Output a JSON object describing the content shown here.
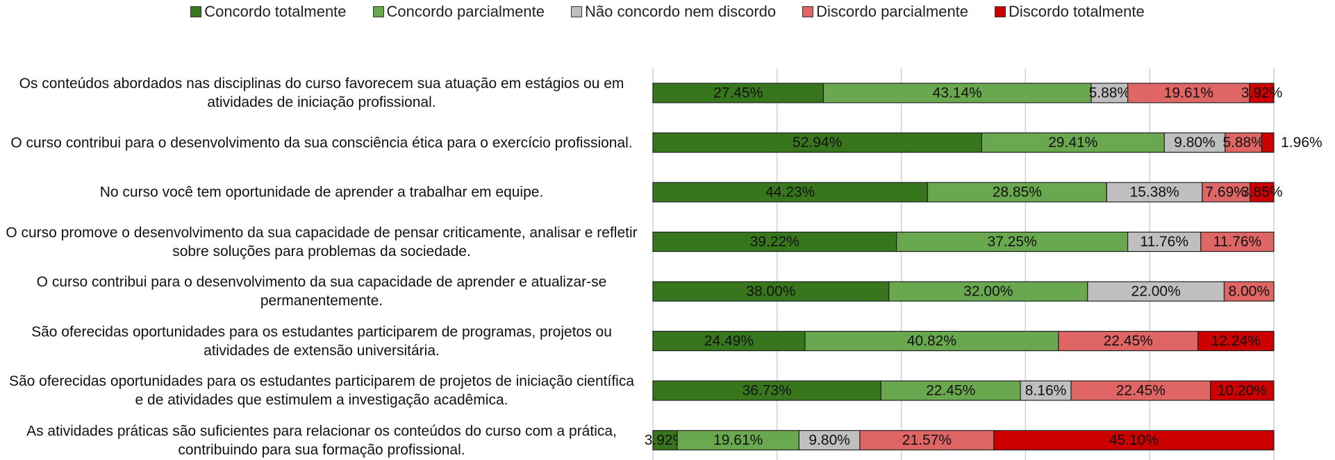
{
  "chart_data": {
    "type": "stacked-barh",
    "categories": [
      "Os conteúdos abordados nas disciplinas do curso favorecem sua atuação em estágios ou em atividades de iniciação profissional.",
      "O curso contribui para o desenvolvimento da sua consciência ética para o exercício profissional.",
      "No curso você tem oportunidade de aprender a trabalhar em equipe.",
      "O curso promove o desenvolvimento da sua capacidade de pensar criticamente, analisar e refletir sobre soluções para problemas da sociedade.",
      "O curso contribui para o desenvolvimento da sua capacidade de aprender e atualizar-se permanentemente.",
      "São oferecidas oportunidades para os estudantes participarem de programas, projetos ou atividades de extensão universitária.",
      "São oferecidas oportunidades para os estudantes participarem de projetos de iniciação científica e de atividades que estimulem a investigação acadêmica.",
      "As atividades práticas são suficientes para relacionar os conteúdos do curso com a prática, contribuindo para sua formação profissional."
    ],
    "series": [
      {
        "name": "Concordo totalmente",
        "color": "#38761d",
        "values": [
          27.45,
          52.94,
          44.23,
          39.22,
          38.0,
          24.49,
          36.73,
          3.92
        ],
        "value_labels": [
          "27.45%",
          "52.94%",
          "44.23%",
          "39.22%",
          "38.00%",
          "24.49%",
          "36.73%",
          "3.92%"
        ]
      },
      {
        "name": "Concordo parcialmente",
        "color": "#6aa84f",
        "values": [
          43.14,
          29.41,
          28.85,
          37.25,
          32.0,
          40.82,
          22.45,
          19.61
        ],
        "value_labels": [
          "43.14%",
          "29.41%",
          "28.85%",
          "37.25%",
          "32.00%",
          "40.82%",
          "22.45%",
          "19.61%"
        ]
      },
      {
        "name": "Não concordo nem discordo",
        "color": "#bfbfbf",
        "values": [
          5.88,
          9.8,
          15.38,
          11.76,
          22.0,
          null,
          8.16,
          9.8
        ],
        "value_labels": [
          "5.88%",
          "9.80%",
          "15.38%",
          "11.76%",
          "22.00%",
          null,
          "8.16%",
          "9.80%"
        ]
      },
      {
        "name": "Discordo parcialmente",
        "color": "#e06666",
        "values": [
          19.61,
          5.88,
          7.69,
          11.76,
          8.0,
          22.45,
          22.45,
          21.57
        ],
        "value_labels": [
          "19.61%",
          "5.88%",
          "7.69%",
          "11.76%",
          "8.00%",
          "22.45%",
          "22.45%",
          "21.57%"
        ]
      },
      {
        "name": "Discordo totalmente",
        "color": "#cc0000",
        "values": [
          3.92,
          1.96,
          3.85,
          null,
          null,
          12.24,
          10.2,
          45.1
        ],
        "value_labels": [
          "3.92%",
          "1.96%",
          "3.85%",
          null,
          null,
          "12.24%",
          "10.20%",
          "45.10%"
        ]
      }
    ],
    "xlim": [
      0,
      100
    ],
    "xticks": [
      0,
      20,
      40,
      60,
      80,
      100
    ],
    "grid": true
  }
}
